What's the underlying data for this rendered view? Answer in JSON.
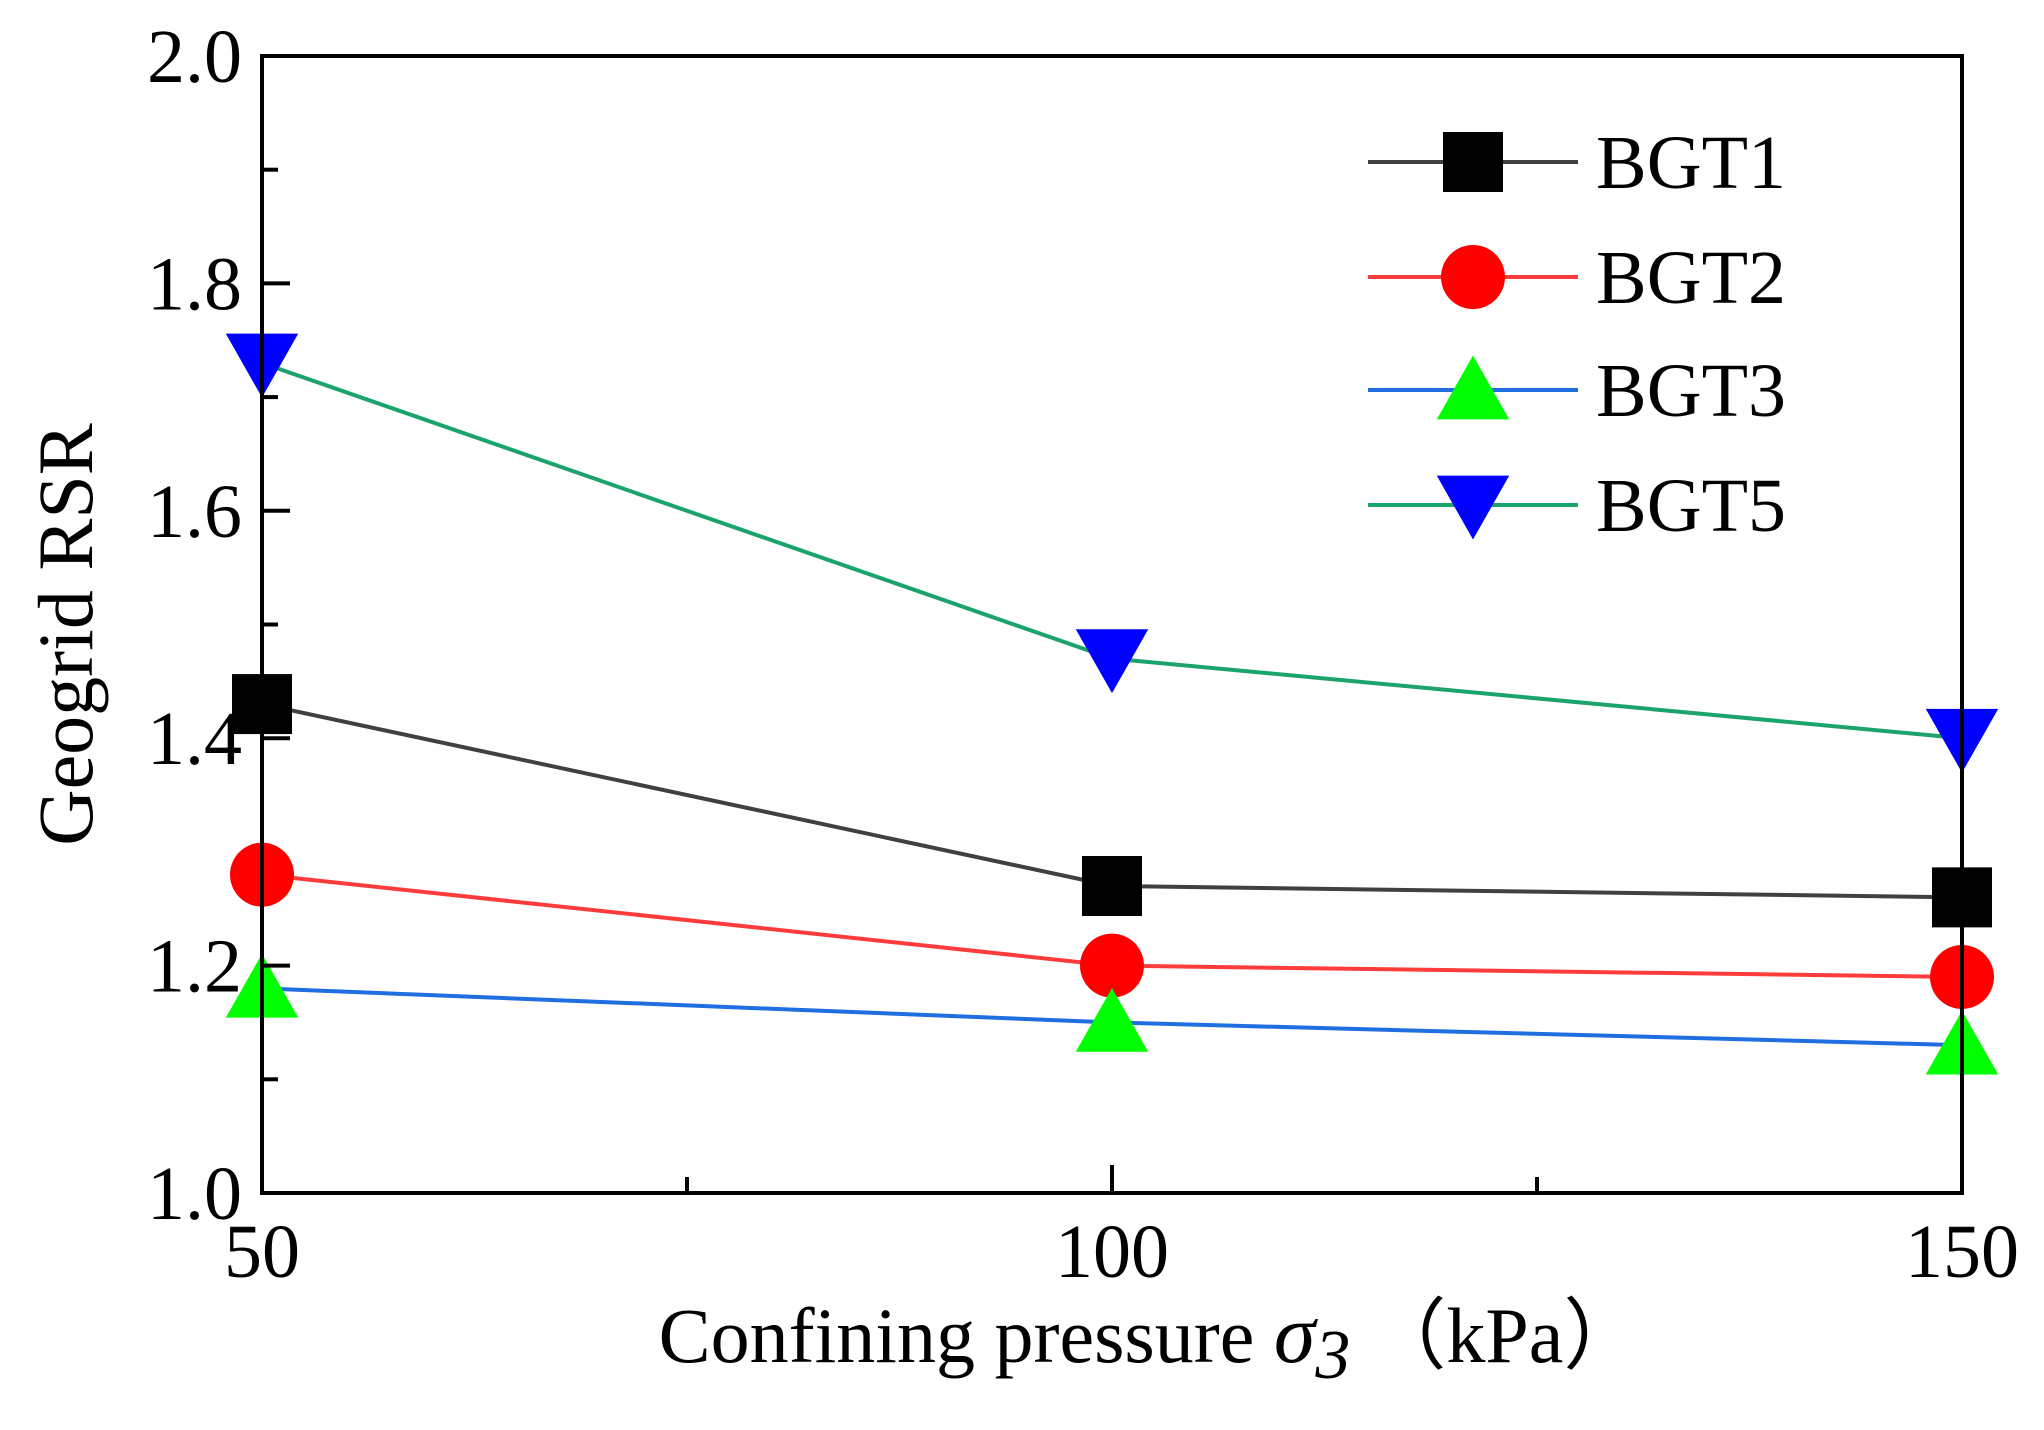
{
  "chart_data": {
    "type": "line",
    "title": "",
    "xlabel": {
      "prefix": "Confining pressure ",
      "symbol": "σ",
      "subscript": "3",
      "unit": "（kPa）"
    },
    "ylabel": "Geogrid RSR",
    "x": [
      50,
      100,
      150
    ],
    "xticks": [
      50,
      100,
      150
    ],
    "xtick_labels": [
      "50",
      "100",
      "150"
    ],
    "xlim": [
      50,
      150
    ],
    "yticks": [
      1.0,
      1.2,
      1.4,
      1.6,
      1.8,
      2.0
    ],
    "ytick_labels": [
      "1.0",
      "1.2",
      "1.4",
      "1.6",
      "1.8",
      "2.0"
    ],
    "ylim": [
      1.0,
      2.0
    ],
    "grid": false,
    "legend_position": "top-right",
    "series": [
      {
        "name": "BGT1",
        "values": [
          1.43,
          1.27,
          1.26
        ],
        "line_color": "#404040",
        "marker": "square",
        "marker_color": "#000000"
      },
      {
        "name": "BGT2",
        "values": [
          1.28,
          1.2,
          1.19
        ],
        "line_color": "#ff3b3b",
        "marker": "circle",
        "marker_color": "#ff0000"
      },
      {
        "name": "BGT3",
        "values": [
          1.18,
          1.15,
          1.13
        ],
        "line_color": "#1f6fe0",
        "marker": "triangle-up",
        "marker_color": "#00ff00"
      },
      {
        "name": "BGT5",
        "values": [
          1.73,
          1.47,
          1.4
        ],
        "line_color": "#1aa36b",
        "marker": "triangle-down",
        "marker_color": "#0000ff"
      }
    ]
  }
}
